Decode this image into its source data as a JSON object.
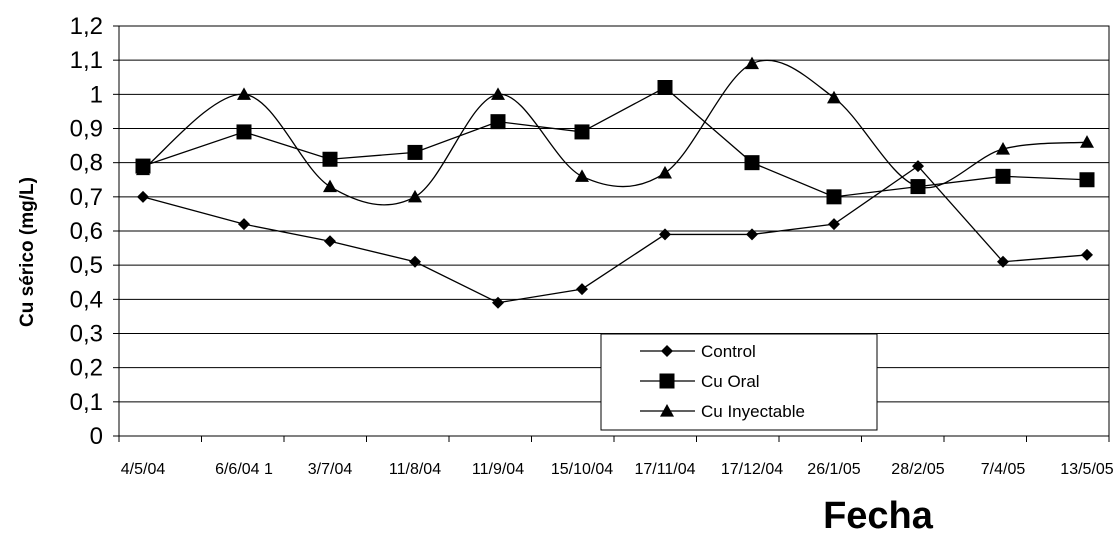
{
  "chart_data": {
    "type": "line",
    "xlabel": "Fecha",
    "ylabel": "Cu sérico (mg/L)",
    "ylim": [
      0,
      1.2
    ],
    "yticks": [
      "0",
      "0,1",
      "0,2",
      "0,3",
      "0,4",
      "0,5",
      "0,6",
      "0,7",
      "0,8",
      "0,9",
      "1",
      "1,1",
      "1,2"
    ],
    "categories": [
      "4/5/04",
      "6/6/04 1",
      "3/7/04",
      "11/8/04",
      "11/9/04",
      "15/10/04",
      "17/11/04",
      "17/12/04",
      "26/1/05",
      "28/2/05",
      "7/4/05",
      "13/5/05"
    ],
    "grid": true,
    "legend_position": "bottom-center",
    "series": [
      {
        "name": "Control",
        "marker": "diamond",
        "smooth": false,
        "values": [
          0.7,
          0.62,
          0.57,
          0.51,
          0.39,
          0.43,
          0.59,
          0.59,
          0.62,
          0.79,
          0.51,
          0.53
        ]
      },
      {
        "name": "Cu Oral",
        "marker": "square",
        "smooth": false,
        "values": [
          0.79,
          0.89,
          0.81,
          0.83,
          0.92,
          0.89,
          1.02,
          0.8,
          0.7,
          0.73,
          0.76,
          0.75
        ]
      },
      {
        "name": "Cu Inyectable",
        "marker": "triangle",
        "smooth": true,
        "values": [
          0.78,
          1.0,
          0.73,
          0.7,
          1.0,
          0.76,
          0.77,
          1.09,
          0.99,
          0.73,
          0.84,
          0.86
        ]
      }
    ]
  }
}
